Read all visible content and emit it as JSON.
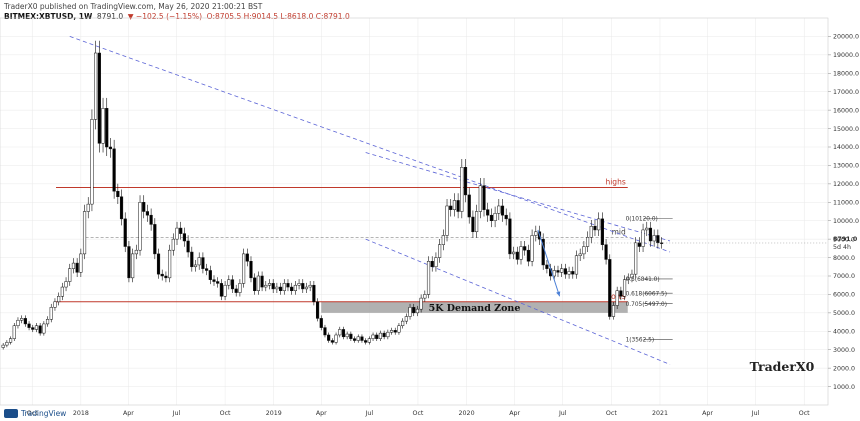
{
  "header": {
    "published_line": "TraderX0 published on TradingView.com, May 26, 2020 21:00:21 BST",
    "symbol": "BITMEX:XBTUSD, 1W",
    "last": "8791.0",
    "change": "▼ −102.5 (−1.15%)",
    "ohlc": "O:8705.5 H:9014.5 L:8618.0 C:8791.0"
  },
  "footer": {
    "brand": "TradingView"
  },
  "watermark": "TraderX0",
  "colors": {
    "up": "#ffffff",
    "down": "#000000",
    "wick": "#111111",
    "resistance": "#c0392b",
    "trendline": "#5b64d6",
    "demand_zone": "#9e9e9e",
    "arrow": "#4a7fd6",
    "grid": "#e9e9e9"
  },
  "chart_data": {
    "type": "candlestick",
    "timeframe": "1W",
    "y_axis": {
      "ticks": [
        1000,
        2000,
        3000,
        4000,
        5000,
        6000,
        7000,
        8000,
        9000,
        10000,
        11000,
        12000,
        13000,
        14000,
        15000,
        16000,
        17000,
        18000,
        19000,
        20000
      ],
      "tick_labels": [
        "1000.0",
        "2000.0",
        "3000.0",
        "4000.0",
        "5000.0",
        "6000.0",
        "7000.0",
        "8000.0",
        "9000.0",
        "10000.0",
        "11000.0",
        "12000.0",
        "13000.0",
        "14000.0",
        "15000.0",
        "16000.0",
        "17000.0",
        "18000.0",
        "19000.0",
        "20000.0"
      ],
      "ylim": [
        0,
        21000
      ],
      "last_price_label": "8791.0",
      "countdown_label": "5d 4h"
    },
    "x_axis": {
      "range": [
        "2017-08-01",
        "2021-11-15"
      ],
      "ticks": [
        {
          "date": "2017-10-01",
          "label": "Oct"
        },
        {
          "date": "2018-01-01",
          "label": "2018"
        },
        {
          "date": "2018-04-01",
          "label": "Apr"
        },
        {
          "date": "2018-07-01",
          "label": "Jul"
        },
        {
          "date": "2018-10-01",
          "label": "Oct"
        },
        {
          "date": "2019-01-01",
          "label": "2019"
        },
        {
          "date": "2019-04-01",
          "label": "Apr"
        },
        {
          "date": "2019-07-01",
          "label": "Jul"
        },
        {
          "date": "2019-10-01",
          "label": "Oct"
        },
        {
          "date": "2020-01-01",
          "label": "2020"
        },
        {
          "date": "2020-04-01",
          "label": "Apr"
        },
        {
          "date": "2020-07-01",
          "label": "Jul"
        },
        {
          "date": "2020-10-01",
          "label": "Oct"
        },
        {
          "date": "2021-01-01",
          "label": "2021"
        },
        {
          "date": "2021-04-01",
          "label": "Apr"
        },
        {
          "date": "2021-07-01",
          "label": "Jul"
        },
        {
          "date": "2021-10-01",
          "label": "Oct"
        }
      ]
    },
    "candles_first_date": "2017-08-07",
    "candles_step_days": 7,
    "close_prices": [
      3250,
      3400,
      3600,
      4300,
      4600,
      4700,
      4400,
      4200,
      4100,
      4300,
      3900,
      4400,
      4650,
      5300,
      5600,
      5900,
      6400,
      6700,
      7400,
      7700,
      7200,
      8200,
      10500,
      10900,
      15500,
      19100,
      14200,
      16100,
      14000,
      13900,
      11600,
      11300,
      10100,
      8600,
      6900,
      8200,
      8400,
      11000,
      10500,
      10300,
      9800,
      8200,
      7100,
      7000,
      6900,
      8400,
      9000,
      9600,
      9300,
      8900,
      8300,
      7500,
      7600,
      8000,
      7400,
      7300,
      6800,
      6700,
      6600,
      5900,
      6500,
      6800,
      6300,
      6100,
      6600,
      8200,
      7800,
      6900,
      6200,
      7000,
      6400,
      6500,
      6600,
      6300,
      6400,
      6200,
      6600,
      6400,
      6200,
      6500,
      6600,
      6300,
      6400,
      6500,
      5600,
      4700,
      4200,
      3800,
      3500,
      3400,
      3800,
      4100,
      3700,
      3850,
      3600,
      3500,
      3700,
      3500,
      3400,
      3600,
      3800,
      3600,
      3900,
      3700,
      3950,
      4050,
      3950,
      4300,
      4550,
      4800,
      5300,
      5000,
      5200,
      5800,
      6000,
      7800,
      7500,
      8000,
      8700,
      9200,
      10800,
      10600,
      11100,
      10500,
      12900,
      11400,
      10200,
      9400,
      10500,
      11900,
      10600,
      10300,
      10000,
      10400,
      10800,
      10300,
      10100,
      8200,
      8300,
      7900,
      8600,
      8400,
      7800,
      9200,
      9400,
      9000,
      7600,
      7400,
      7000,
      7300,
      7200,
      7400,
      7100,
      7250,
      7100,
      8100,
      8200,
      8600,
      9100,
      9700,
      9500,
      10100,
      8700,
      7900,
      4800,
      5400,
      6200,
      5900,
      6800,
      6900,
      7100,
      8800,
      8600,
      9500,
      9600,
      8900,
      9200,
      8800,
      8791
    ],
    "levels": [
      {
        "label": "highs",
        "price": 11800
      },
      {
        "label": "mid",
        "price": 9100
      },
      {
        "label": "lows",
        "price": 5600
      }
    ],
    "fib_levels": [
      {
        "label": "0(10120.0)",
        "price": 10120
      },
      {
        "label": "0.5(6841.0)",
        "price": 6841
      },
      {
        "label": "0.618(6067.5)",
        "price": 6067.5
      },
      {
        "label": "0.705(5497.0)",
        "price": 5497
      },
      {
        "label": "1(3562.5)",
        "price": 3562.5
      }
    ],
    "demand_zone": {
      "label": "5K Demand Zone",
      "from_price": 5000,
      "to_price": 5600,
      "from_date": "2019-04-01",
      "to_date": "2020-11-01"
    },
    "trendlines": [
      {
        "from": [
          "2017-12-11",
          20000
        ],
        "to": [
          "2021-01-20",
          8300
        ]
      },
      {
        "from": [
          "2019-06-24",
          13700
        ],
        "to": [
          "2021-01-20",
          8900
        ]
      },
      {
        "from": [
          "2019-06-24",
          9000
        ],
        "to": [
          "2021-01-20",
          2200
        ]
      }
    ],
    "projection_arrow": {
      "from": [
        "2020-05-15",
        9500
      ],
      "to": [
        "2020-06-25",
        5900
      ]
    }
  }
}
